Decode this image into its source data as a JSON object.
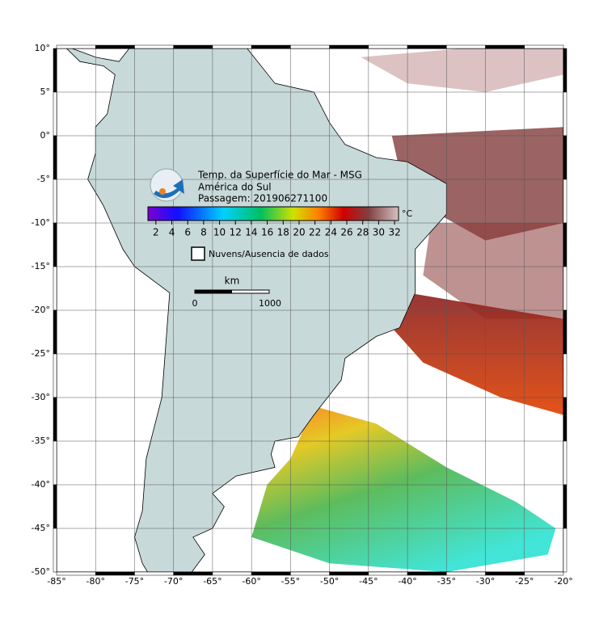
{
  "header": {
    "title_lines": [
      "Temp. da Superfície do Mar - MSG",
      "América do Sul",
      "Passagem: 201906271100"
    ]
  },
  "colorbar": {
    "ticks": [
      2,
      4,
      6,
      8,
      10,
      12,
      14,
      16,
      18,
      20,
      22,
      24,
      26,
      28,
      30,
      32
    ],
    "range": [
      1,
      32.5
    ],
    "unit": "°C"
  },
  "legend": {
    "label": "Nuvens/Ausencia de dados"
  },
  "scale": {
    "unit": "km",
    "labels": [
      "0",
      "1000"
    ]
  },
  "axes": {
    "lon_range": [
      -85,
      -20
    ],
    "lat_range": [
      10,
      -50
    ],
    "lon_ticks": [
      {
        "value": -85,
        "label": "-85°"
      },
      {
        "value": -80,
        "label": "-80°"
      },
      {
        "value": -75,
        "label": "-75°"
      },
      {
        "value": -70,
        "label": "-70°"
      },
      {
        "value": -65,
        "label": "-65°"
      },
      {
        "value": -60,
        "label": "-60°"
      },
      {
        "value": -55,
        "label": "-55°"
      },
      {
        "value": -50,
        "label": "-50°"
      },
      {
        "value": -45,
        "label": "-45°"
      },
      {
        "value": -40,
        "label": "-40°"
      },
      {
        "value": -35,
        "label": "-35°"
      },
      {
        "value": -30,
        "label": "-30°"
      },
      {
        "value": -25,
        "label": "-25°"
      },
      {
        "value": -20,
        "label": "-20°"
      }
    ],
    "lat_ticks": [
      {
        "value": 10,
        "label": "10°"
      },
      {
        "value": 5,
        "label": "5°"
      },
      {
        "value": 0,
        "label": "0°"
      },
      {
        "value": -5,
        "label": "-5°"
      },
      {
        "value": -10,
        "label": "-10°"
      },
      {
        "value": -15,
        "label": "-15°"
      },
      {
        "value": -20,
        "label": "-20°"
      },
      {
        "value": -25,
        "label": "-25°"
      },
      {
        "value": -30,
        "label": "-30°"
      },
      {
        "value": -35,
        "label": "-35°"
      },
      {
        "value": -40,
        "label": "-40°"
      },
      {
        "value": -45,
        "label": "-45°"
      },
      {
        "value": -50,
        "label": "-50°"
      }
    ]
  }
}
